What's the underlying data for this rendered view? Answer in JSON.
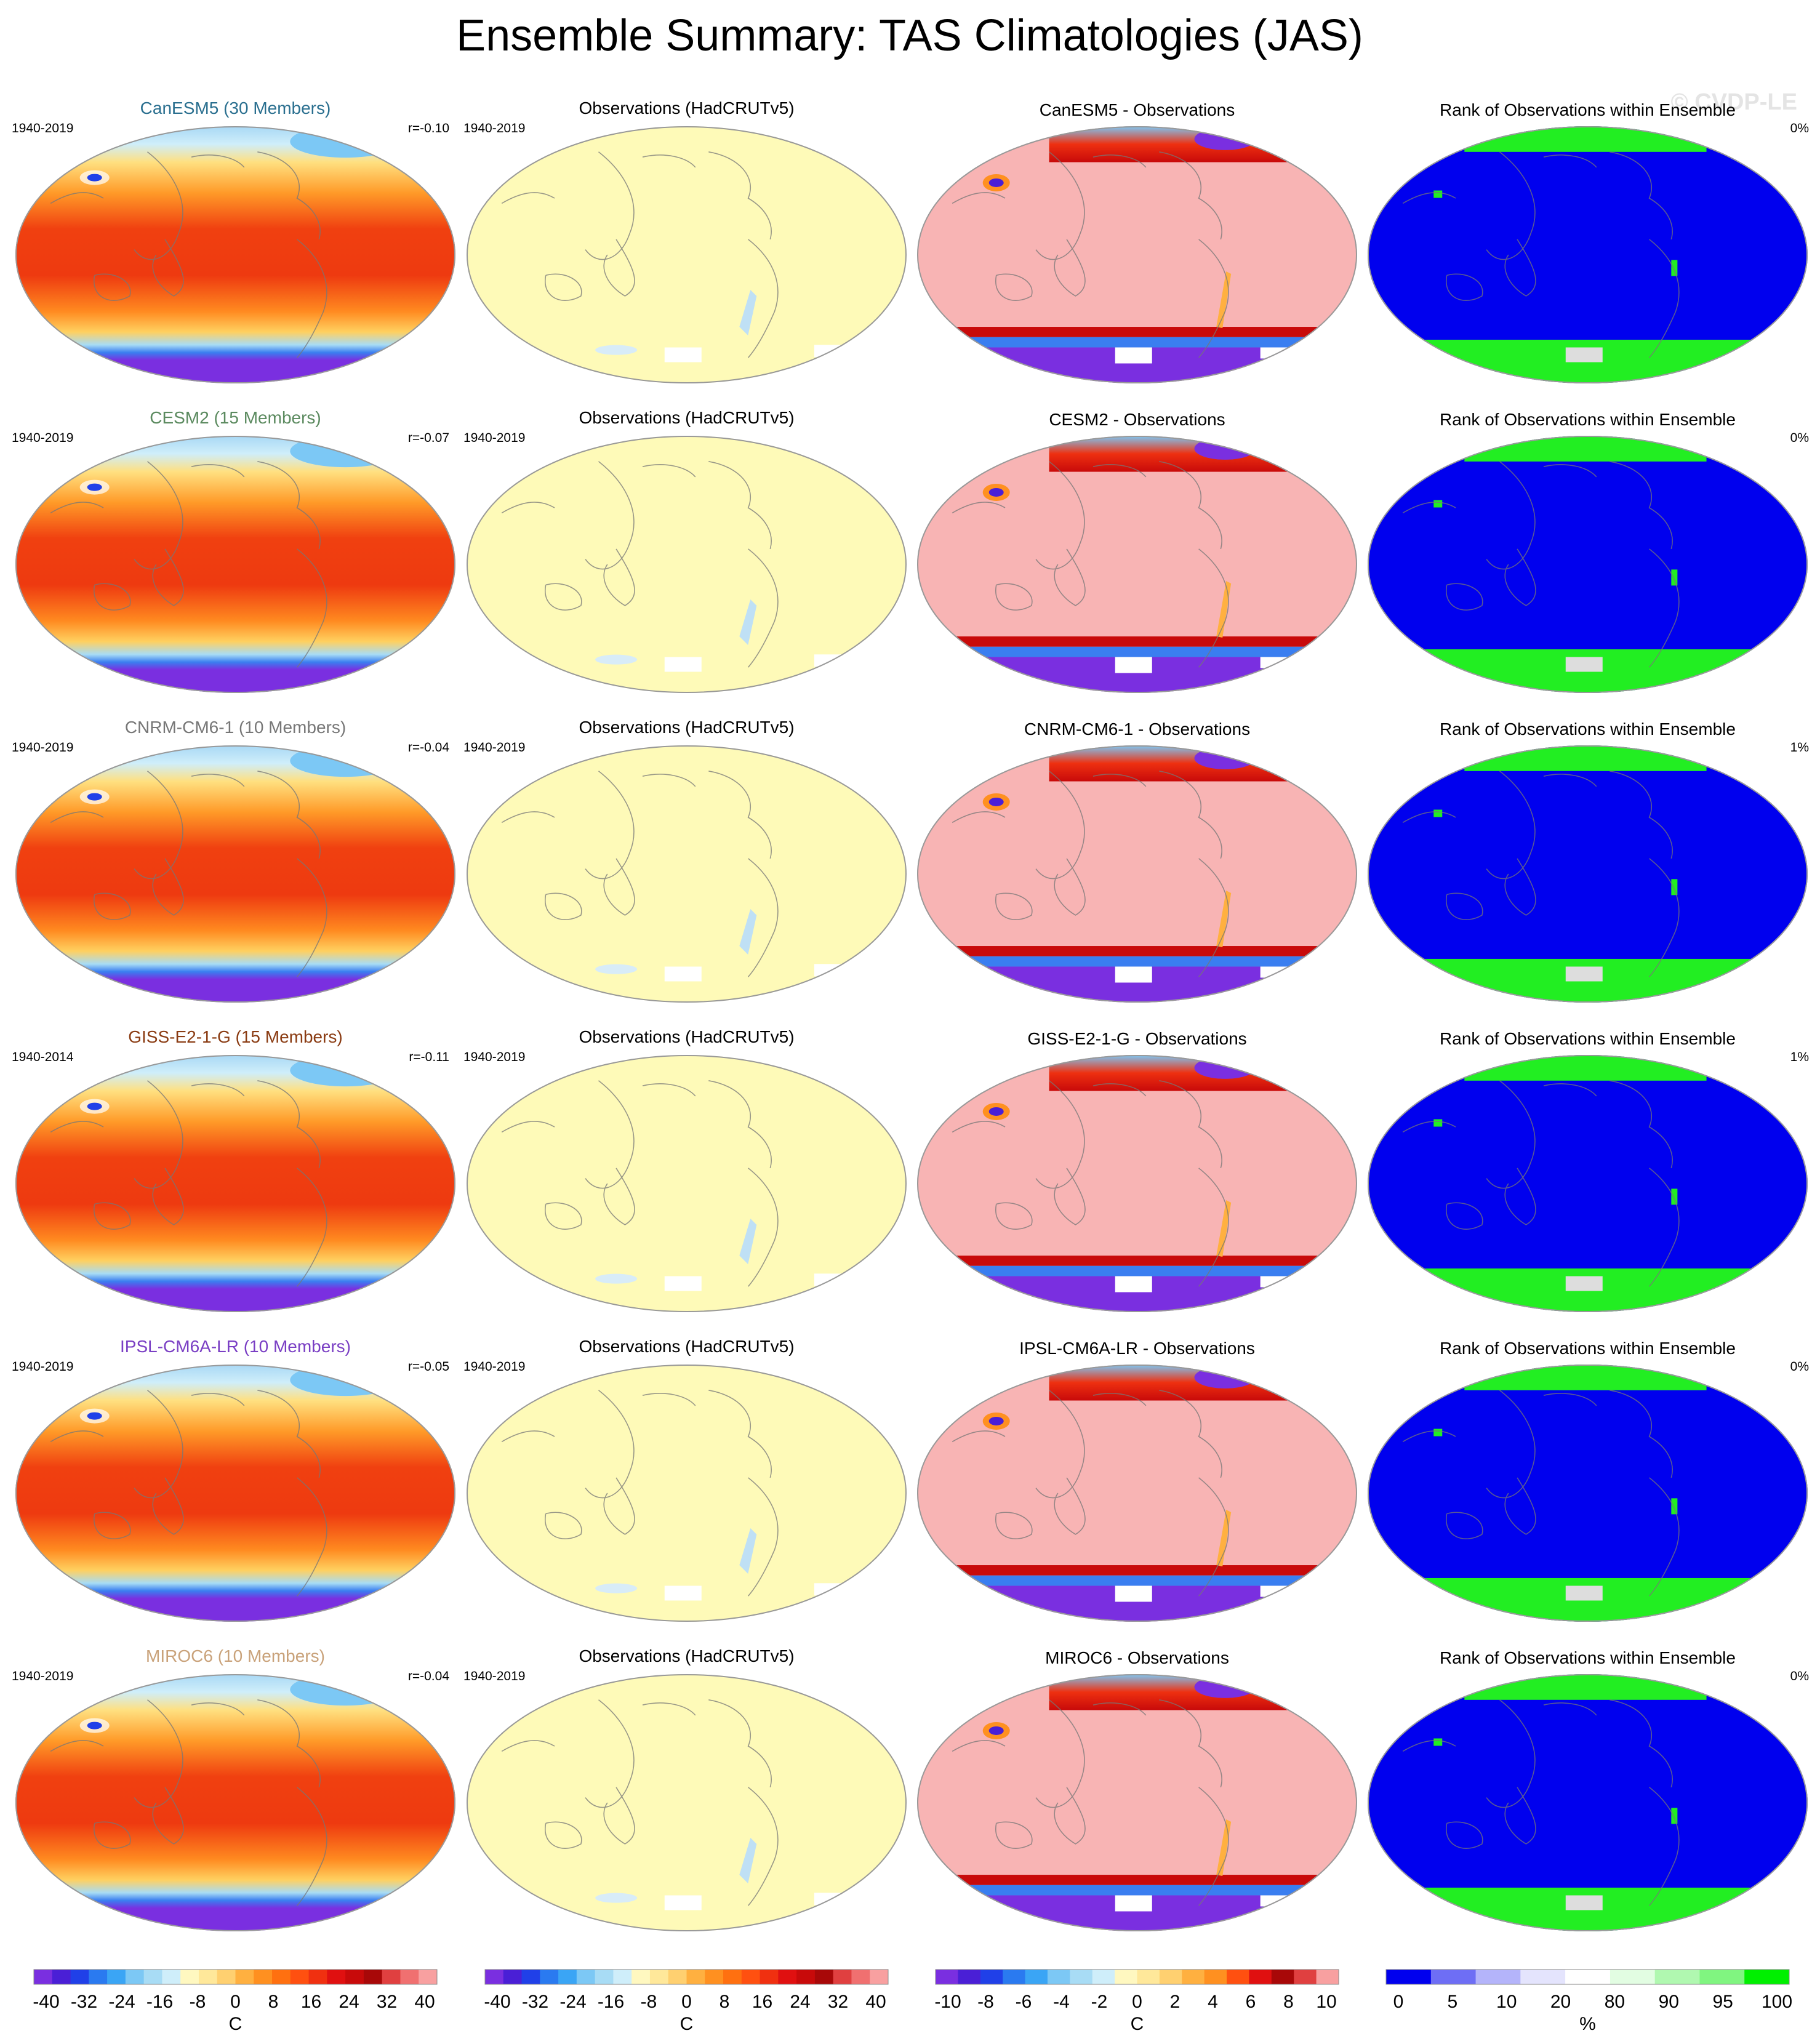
{
  "title": "Ensemble Summary: TAS Climatologies (JAS)",
  "watermark": "© CVDP-LE",
  "col_titles": {
    "obs": "Observations (HadCRUTv5)",
    "rank": "Rank of Observations within Ensemble"
  },
  "rows": [
    {
      "model": "CanESM5 (30 Members)",
      "model_color": "#2a6f8f",
      "period": "1940-2019",
      "obs_period": "1940-2019",
      "r": "r=-0.10",
      "diff_title": "CanESM5 - Observations",
      "rank_pct": "0%"
    },
    {
      "model": "CESM2 (15 Members)",
      "model_color": "#5b8a5f",
      "period": "1940-2019",
      "obs_period": "1940-2019",
      "r": "r=-0.07",
      "diff_title": "CESM2 - Observations",
      "rank_pct": "0%"
    },
    {
      "model": "CNRM-CM6-1 (10 Members)",
      "model_color": "#777777",
      "period": "1940-2019",
      "obs_period": "1940-2019",
      "r": "r=-0.04",
      "diff_title": "CNRM-CM6-1 - Observations",
      "rank_pct": "1%"
    },
    {
      "model": "GISS-E2-1-G (15 Members)",
      "model_color": "#8a3b12",
      "period": "1940-2014",
      "obs_period": "1940-2019",
      "r": "r=-0.11",
      "diff_title": "GISS-E2-1-G - Observations",
      "rank_pct": "1%"
    },
    {
      "model": "IPSL-CM6A-LR (10 Members)",
      "model_color": "#7a3fc4",
      "period": "1940-2019",
      "obs_period": "1940-2019",
      "r": "r=-0.05",
      "diff_title": "IPSL-CM6A-LR - Observations",
      "rank_pct": "0%"
    },
    {
      "model": "MIROC6 (10 Members)",
      "model_color": "#c9a27a",
      "period": "1940-2019",
      "obs_period": "1940-2019",
      "r": "r=-0.04",
      "diff_title": "MIROC6 - Observations",
      "rank_pct": "0%"
    }
  ],
  "colorbars": [
    {
      "unit": "C",
      "labels": [
        "-40",
        "-32",
        "-24",
        "-16",
        "-8",
        "0",
        "8",
        "16",
        "24",
        "32",
        "40"
      ],
      "colors": [
        "#7a2fe0",
        "#4a1fd6",
        "#2040e8",
        "#2a7af0",
        "#3aa5f5",
        "#7cc8f5",
        "#a8dcf5",
        "#cfeefa",
        "#fff8c0",
        "#ffe89a",
        "#ffd070",
        "#ffb040",
        "#ff9020",
        "#ff7010",
        "#ff5010",
        "#f03010",
        "#e01010",
        "#c80a0a",
        "#a80808",
        "#e04040",
        "#f07070",
        "#f8a0a0"
      ]
    },
    {
      "unit": "C",
      "labels": [
        "-40",
        "-32",
        "-24",
        "-16",
        "-8",
        "0",
        "8",
        "16",
        "24",
        "32",
        "40"
      ],
      "colors": [
        "#7a2fe0",
        "#4a1fd6",
        "#2040e8",
        "#2a7af0",
        "#3aa5f5",
        "#7cc8f5",
        "#a8dcf5",
        "#cfeefa",
        "#fff8c0",
        "#ffe89a",
        "#ffd070",
        "#ffb040",
        "#ff9020",
        "#ff7010",
        "#ff5010",
        "#f03010",
        "#e01010",
        "#c80a0a",
        "#a80808",
        "#e04040",
        "#f07070",
        "#f8a0a0"
      ]
    },
    {
      "unit": "C",
      "labels": [
        "-10",
        "-8",
        "-6",
        "-4",
        "-2",
        "0",
        "2",
        "4",
        "6",
        "8",
        "10"
      ],
      "colors": [
        "#7a2fe0",
        "#4a1fd6",
        "#2040e8",
        "#2a7af0",
        "#3aa5f5",
        "#7cc8f5",
        "#a8dcf5",
        "#cfeefa",
        "#fff8c0",
        "#ffe89a",
        "#ffd070",
        "#ffb040",
        "#ff9020",
        "#ff5010",
        "#e01010",
        "#a80808",
        "#e04040",
        "#f8a0a0"
      ]
    },
    {
      "unit": "%",
      "labels": [
        "0",
        "5",
        "10",
        "20",
        "80",
        "90",
        "95",
        "100"
      ],
      "colors": [
        "#0000ee",
        "#6e6ef5",
        "#b4b4fa",
        "#e4e4fd",
        "#ffffff",
        "#e2fde2",
        "#b0f8b0",
        "#80f580",
        "#00f000"
      ]
    }
  ],
  "colors": {
    "model_warm": "#ee3a10",
    "obs_bg": "#fefab8",
    "diff_bg": "#f8b4b4",
    "rank_bg": "#0000ee",
    "rank_green": "#22ee22"
  }
}
